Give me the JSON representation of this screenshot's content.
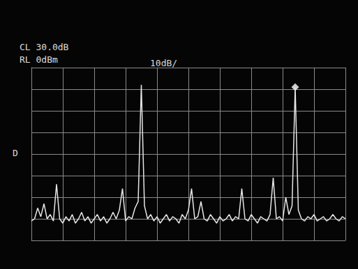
{
  "chart_data": {
    "type": "line",
    "annotations": [
      "CL 30.0dB",
      "RL 0dBm",
      "10dB/",
      "D"
    ],
    "x": [
      0,
      0.1,
      0.2,
      0.3,
      0.4,
      0.5,
      0.6,
      0.7,
      0.8,
      0.9,
      1,
      1.1,
      1.2,
      1.3,
      1.4,
      1.5,
      1.6,
      1.7,
      1.8,
      1.9,
      2,
      2.1,
      2.2,
      2.3,
      2.4,
      2.5,
      2.6,
      2.7,
      2.8,
      2.9,
      3,
      3.1,
      3.2,
      3.3,
      3.4,
      3.5,
      3.6,
      3.7,
      3.8,
      3.9,
      4,
      4.1,
      4.2,
      4.3,
      4.4,
      4.5,
      4.6,
      4.7,
      4.8,
      4.9,
      5,
      5.1,
      5.2,
      5.3,
      5.4,
      5.5,
      5.6,
      5.7,
      5.8,
      5.9,
      6,
      6.1,
      6.2,
      6.3,
      6.4,
      6.5,
      6.6,
      6.7,
      6.8,
      6.9,
      7,
      7.1,
      7.2,
      7.3,
      7.4,
      7.5,
      7.6,
      7.7,
      7.8,
      7.9,
      8,
      8.1,
      8.2,
      8.3,
      8.4,
      8.5,
      8.6,
      8.7,
      8.8,
      8.9,
      9,
      9.1,
      9.2,
      9.3,
      9.4,
      9.5,
      9.6,
      9.7,
      9.8,
      9.9,
      10
    ],
    "values": [
      -71,
      -70,
      -65,
      -69,
      -63,
      -70,
      -68,
      -71,
      -54,
      -70,
      -72,
      -69,
      -71,
      -68,
      -72,
      -70,
      -67,
      -71,
      -69,
      -72,
      -70,
      -68,
      -71,
      -69,
      -72,
      -70,
      -67,
      -70,
      -66,
      -56,
      -71,
      -69,
      -70,
      -65,
      -62,
      -8,
      -64,
      -70,
      -68,
      -71,
      -69,
      -72,
      -70,
      -68,
      -71,
      -69,
      -70,
      -72,
      -68,
      -70,
      -66,
      -56,
      -70,
      -69,
      -62,
      -70,
      -71,
      -68,
      -70,
      -72,
      -69,
      -71,
      -70,
      -68,
      -71,
      -69,
      -70,
      -56,
      -70,
      -71,
      -68,
      -70,
      -72,
      -69,
      -70,
      -71,
      -68,
      -51,
      -70,
      -69,
      -71,
      -60,
      -68,
      -64,
      -9,
      -66,
      -70,
      -71,
      -69,
      -70,
      -68,
      -71,
      -70,
      -69,
      -71,
      -70,
      -68,
      -70,
      -71,
      -69,
      -70
    ],
    "color": "#e6e6e6",
    "marker_point": {
      "x": 8.4,
      "y": -9
    },
    "xlim": [
      0,
      10
    ],
    "xticks": [
      0,
      1,
      2,
      3,
      4,
      5,
      6,
      7,
      8,
      9,
      10
    ],
    "ylim": [
      -80,
      0
    ],
    "yticks": [
      -80,
      -70,
      -60,
      -50,
      -40,
      -30,
      -20,
      -10,
      0
    ],
    "grid": true,
    "tick_labels": false
  }
}
